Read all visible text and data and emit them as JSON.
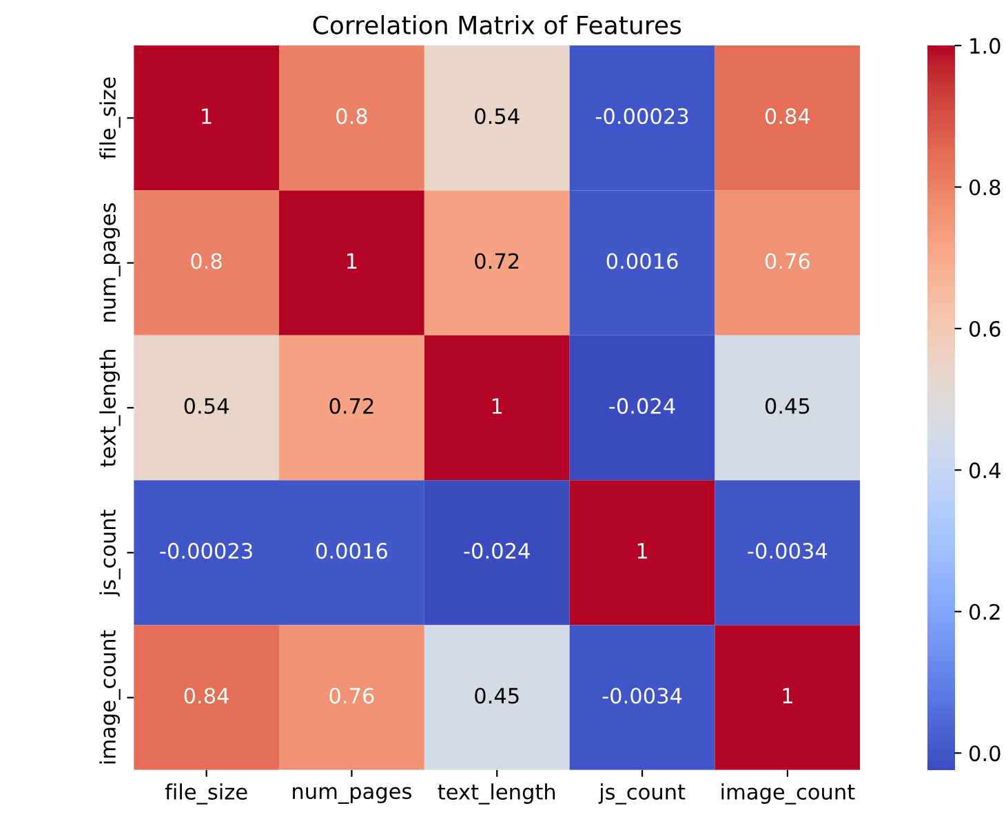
{
  "chart_data": {
    "type": "heatmap",
    "title": "Correlation Matrix of Features",
    "categories": [
      "file_size",
      "num_pages",
      "text_length",
      "js_count",
      "image_count"
    ],
    "y_categories": [
      "file_size",
      "num_pages",
      "text_length",
      "js_count",
      "image_count"
    ],
    "cells": [
      [
        1,
        0.8,
        0.54,
        -0.00023,
        0.84
      ],
      [
        0.8,
        1,
        0.72,
        0.0016,
        0.76
      ],
      [
        0.54,
        0.72,
        1,
        -0.024,
        0.45
      ],
      [
        -0.00023,
        0.0016,
        -0.024,
        1,
        -0.0034
      ],
      [
        0.84,
        0.76,
        0.45,
        -0.0034,
        1
      ]
    ],
    "data_labels": true,
    "clim": [
      -0.024,
      1
    ],
    "cticks": [
      {
        "value": 0,
        "label": "0.0"
      },
      {
        "value": 0.2,
        "label": "0.2"
      },
      {
        "value": 0.4,
        "label": "0.4"
      },
      {
        "value": 0.6,
        "label": "0.6"
      },
      {
        "value": 0.8,
        "label": "0.8"
      },
      {
        "value": 1,
        "label": "1.0"
      }
    ]
  }
}
